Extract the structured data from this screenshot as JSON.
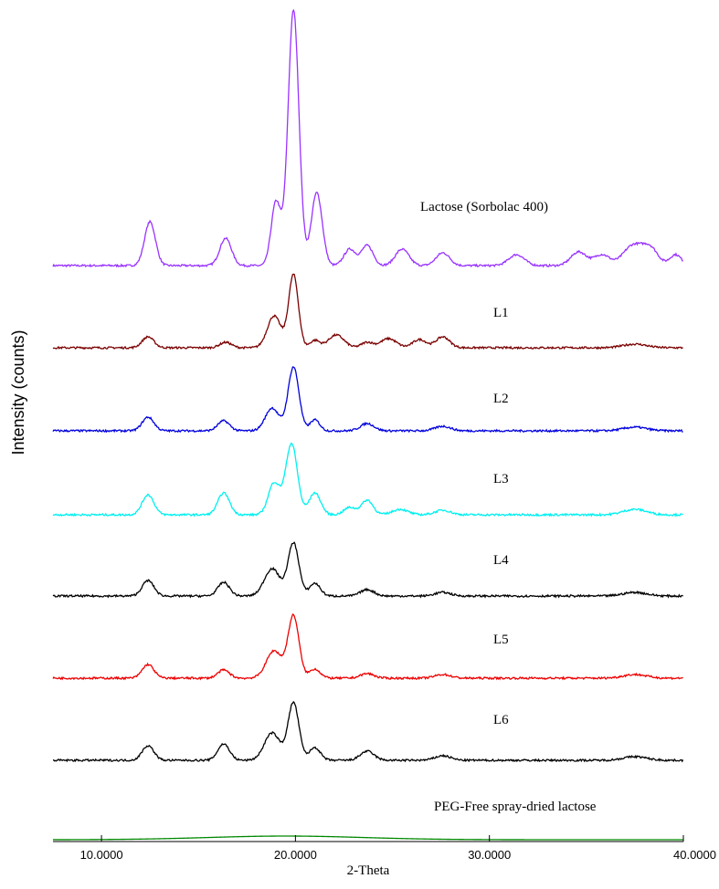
{
  "chart_data": {
    "type": "line",
    "xlabel": "2-Theta",
    "ylabel": "Intensity (counts)",
    "xlim": [
      7.5,
      40.0
    ],
    "x_ticks": [
      "10.0000",
      "20.0000",
      "30.0000",
      "40.0000"
    ],
    "grid": false,
    "legend": "none (series labelled next to each trace)",
    "series": [
      {
        "name": "Lactose (Sorbolac 400)",
        "color": "#9933ff",
        "peaks": [
          [
            12.5,
            48,
            0.28
          ],
          [
            16.4,
            30,
            0.3
          ],
          [
            19.0,
            70,
            0.25
          ],
          [
            19.9,
            280,
            0.28
          ],
          [
            21.1,
            80,
            0.28
          ],
          [
            22.8,
            18,
            0.3
          ],
          [
            23.7,
            22,
            0.3
          ],
          [
            25.5,
            18,
            0.35
          ],
          [
            27.6,
            14,
            0.35
          ],
          [
            31.4,
            12,
            0.4
          ],
          [
            34.6,
            15,
            0.4
          ],
          [
            35.8,
            12,
            0.4
          ],
          [
            37.4,
            22,
            0.5
          ],
          [
            38.3,
            18,
            0.4
          ],
          [
            39.6,
            12,
            0.3
          ]
        ]
      },
      {
        "name": "L1",
        "color": "#7a0000",
        "peaks": [
          [
            12.4,
            12,
            0.3
          ],
          [
            16.4,
            6,
            0.3
          ],
          [
            18.9,
            35,
            0.35
          ],
          [
            19.9,
            80,
            0.25
          ],
          [
            21.0,
            8,
            0.25
          ],
          [
            22.1,
            14,
            0.4
          ],
          [
            23.7,
            6,
            0.3
          ],
          [
            24.8,
            10,
            0.4
          ],
          [
            26.4,
            9,
            0.35
          ],
          [
            27.6,
            12,
            0.35
          ],
          [
            37.5,
            4,
            0.6
          ]
        ]
      },
      {
        "name": "L2",
        "color": "#0000dd",
        "peaks": [
          [
            12.4,
            15,
            0.3
          ],
          [
            16.3,
            11,
            0.3
          ],
          [
            18.8,
            25,
            0.35
          ],
          [
            19.9,
            70,
            0.28
          ],
          [
            21.0,
            12,
            0.25
          ],
          [
            23.7,
            8,
            0.35
          ],
          [
            27.6,
            5,
            0.4
          ],
          [
            37.5,
            4,
            0.6
          ]
        ]
      },
      {
        "name": "L3",
        "color": "#00f0f0",
        "peaks": [
          [
            12.4,
            22,
            0.3
          ],
          [
            16.3,
            24,
            0.3
          ],
          [
            18.9,
            35,
            0.3
          ],
          [
            19.8,
            78,
            0.3
          ],
          [
            21.0,
            24,
            0.3
          ],
          [
            22.8,
            8,
            0.3
          ],
          [
            23.7,
            16,
            0.3
          ],
          [
            25.4,
            6,
            0.4
          ],
          [
            27.6,
            5,
            0.4
          ],
          [
            37.5,
            6,
            0.6
          ]
        ]
      },
      {
        "name": "L4",
        "color": "#000000",
        "peaks": [
          [
            12.4,
            17,
            0.3
          ],
          [
            16.3,
            15,
            0.3
          ],
          [
            18.8,
            30,
            0.4
          ],
          [
            19.9,
            58,
            0.28
          ],
          [
            21.0,
            14,
            0.28
          ],
          [
            23.7,
            7,
            0.35
          ],
          [
            27.6,
            4,
            0.4
          ],
          [
            37.5,
            4,
            0.6
          ]
        ]
      },
      {
        "name": "L5",
        "color": "#ee0000",
        "peaks": [
          [
            12.4,
            15,
            0.3
          ],
          [
            16.3,
            9,
            0.3
          ],
          [
            18.9,
            30,
            0.4
          ],
          [
            19.9,
            68,
            0.28
          ],
          [
            21.0,
            10,
            0.28
          ],
          [
            23.7,
            5,
            0.35
          ],
          [
            27.6,
            4,
            0.4
          ],
          [
            37.5,
            4,
            0.6
          ]
        ]
      },
      {
        "name": "L6",
        "color": "#000000",
        "peaks": [
          [
            12.4,
            16,
            0.3
          ],
          [
            16.3,
            18,
            0.3
          ],
          [
            18.8,
            30,
            0.4
          ],
          [
            19.9,
            63,
            0.28
          ],
          [
            21.0,
            14,
            0.28
          ],
          [
            23.7,
            10,
            0.35
          ],
          [
            27.6,
            5,
            0.4
          ],
          [
            37.5,
            4,
            0.6
          ]
        ]
      },
      {
        "name": "PEG-Free spray-dried lactose",
        "color": "#008800",
        "peaks": [
          [
            19.5,
            4,
            4.0
          ]
        ]
      }
    ]
  }
}
